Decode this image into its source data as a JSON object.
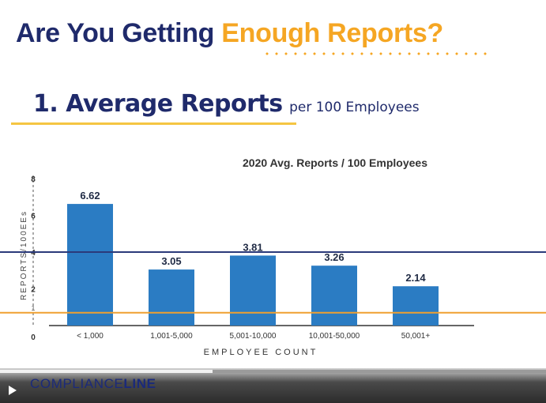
{
  "slide": {
    "title_part1": "Are You Getting ",
    "title_part2": "Enough Reports?",
    "subtitle_main": "1. Average Reports",
    "subtitle_small": "per 100 Employees"
  },
  "colors": {
    "title_navy": "#1f2a6b",
    "accent_orange": "#f5a623",
    "bar_blue": "#2b7cc3",
    "mean_line": "#2b3a7a",
    "baseline_line": "#f0a030"
  },
  "chart_data": {
    "type": "bar",
    "title": "2020 Avg. Reports / 100 Employees",
    "xlabel": "EMPLOYEE COUNT",
    "ylabel": "REPORTS/100EEs",
    "categories": [
      "< 1,000",
      "1,001-5,000",
      "5,001-10,000",
      "10,001-50,000",
      "50,001+"
    ],
    "values": [
      6.62,
      3.05,
      3.81,
      3.26,
      2.14
    ],
    "value_labels": [
      "6.62",
      "3.05",
      "3.81",
      "3.26",
      "2.14"
    ],
    "ylim": [
      0,
      8
    ],
    "yticks": [
      0,
      2,
      4,
      6,
      8
    ],
    "yticks_partial": [
      1
    ],
    "reference_lines": [
      {
        "value": 4.0,
        "color": "#2b3a7a"
      },
      {
        "value": 0.7,
        "color": "#f0a030"
      }
    ],
    "grid": false
  },
  "footer": {
    "brand_light": "COMPLIANCE",
    "brand_bold": "LINE",
    "progress": 0.39
  }
}
